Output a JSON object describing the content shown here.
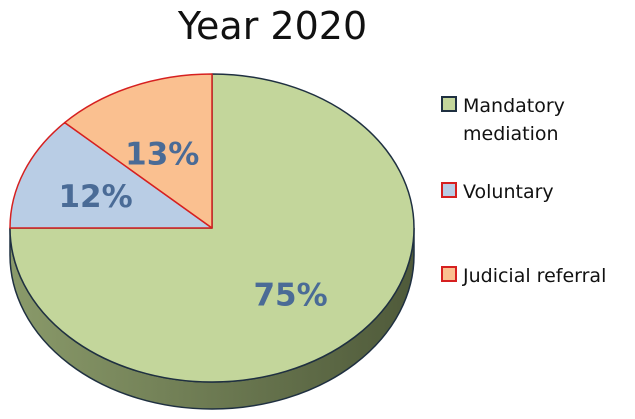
{
  "chart_data": {
    "type": "pie",
    "title": "Year 2020",
    "categories": [
      "Mandatory mediation",
      "Voluntary",
      "Judicial referral"
    ],
    "values": [
      75,
      12,
      13
    ],
    "value_labels": [
      "75%",
      "12%",
      "13%"
    ],
    "legend": [
      "Mandatory\nmediation",
      "Voluntary",
      "Judicial referral"
    ],
    "legend_placement": "right",
    "three_d": true,
    "colors": {
      "mandatory": "#c3d69b",
      "voluntary": "#b9cde5",
      "judicial": "#fac090",
      "label_text": "#4a6b96",
      "mandatory_border": "#1f3041",
      "slice_border": "#d62020"
    }
  }
}
